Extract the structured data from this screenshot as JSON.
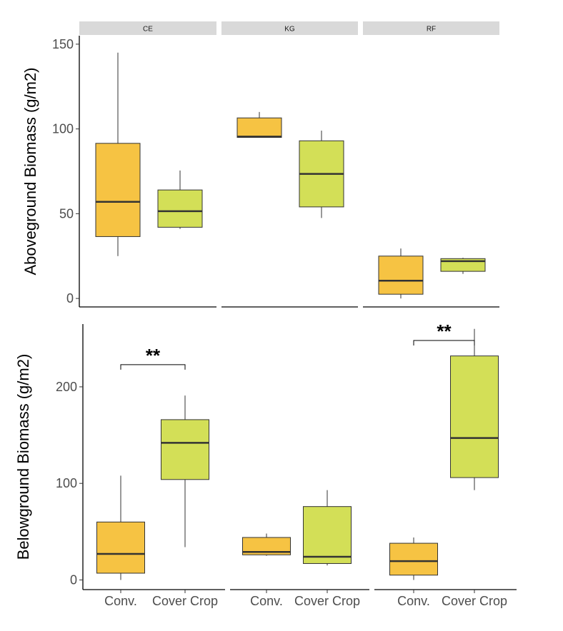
{
  "chart_data": [
    {
      "type": "box",
      "ylabel": "Aboveground Biomass (g/m2)",
      "ylim": [
        -5,
        155
      ],
      "yticks": [
        0,
        50,
        100,
        150
      ],
      "facets": [
        "CE",
        "KG",
        "RF"
      ],
      "categories": [
        "Conv.",
        "Cover Crop"
      ],
      "show_x_tick_labels": false,
      "colors": {
        "Conv.": "#f6c343",
        "Cover Crop": "#d3df57"
      },
      "boxes": [
        {
          "facet": "CE",
          "category": "Conv.",
          "min": 25,
          "q1": 36.5,
          "median": 57,
          "q3": 91.5,
          "max": 145
        },
        {
          "facet": "CE",
          "category": "Cover Crop",
          "min": 41,
          "q1": 42,
          "median": 51.5,
          "q3": 64,
          "max": 75.5
        },
        {
          "facet": "KG",
          "category": "Conv.",
          "min": 95,
          "q1": 95,
          "median": 95.5,
          "q3": 106.5,
          "max": 110
        },
        {
          "facet": "KG",
          "category": "Cover Crop",
          "min": 47.5,
          "q1": 54,
          "median": 73.5,
          "q3": 93,
          "max": 99
        },
        {
          "facet": "RF",
          "category": "Conv.",
          "min": 0,
          "q1": 2.5,
          "median": 10.5,
          "q3": 25,
          "max": 29.5
        },
        {
          "facet": "RF",
          "category": "Cover Crop",
          "min": 14.5,
          "q1": 16,
          "median": 22,
          "q3": 23.5,
          "max": 24
        }
      ],
      "significance": []
    },
    {
      "type": "box",
      "ylabel": "Belowground Biomass (g/m2)",
      "ylim": [
        -10,
        265
      ],
      "yticks": [
        0,
        100,
        200
      ],
      "facets": [
        "CE",
        "KG",
        "RF"
      ],
      "categories": [
        "Conv.",
        "Cover Crop"
      ],
      "show_x_tick_labels": true,
      "colors": {
        "Conv.": "#f6c343",
        "Cover Crop": "#d3df57"
      },
      "boxes": [
        {
          "facet": "CE",
          "category": "Conv.",
          "min": 0,
          "q1": 7,
          "median": 27,
          "q3": 60,
          "max": 108
        },
        {
          "facet": "CE",
          "category": "Cover Crop",
          "min": 34,
          "q1": 104,
          "median": 142,
          "q3": 166,
          "max": 191
        },
        {
          "facet": "KG",
          "category": "Conv.",
          "min": 25,
          "q1": 26,
          "median": 29,
          "q3": 44,
          "max": 48
        },
        {
          "facet": "KG",
          "category": "Cover Crop",
          "min": 15,
          "q1": 17,
          "median": 24,
          "q3": 76,
          "max": 93
        },
        {
          "facet": "RF",
          "category": "Conv.",
          "min": 0,
          "q1": 5,
          "median": 19.5,
          "q3": 38,
          "max": 44
        },
        {
          "facet": "RF",
          "category": "Cover Crop",
          "min": 93,
          "q1": 106,
          "median": 147,
          "q3": 232,
          "max": 260
        }
      ],
      "significance": [
        {
          "facet": "CE",
          "label": "**",
          "y": 223,
          "tick": 7
        },
        {
          "facet": "RF",
          "label": "**",
          "y": 248,
          "tick": 7
        }
      ]
    }
  ]
}
